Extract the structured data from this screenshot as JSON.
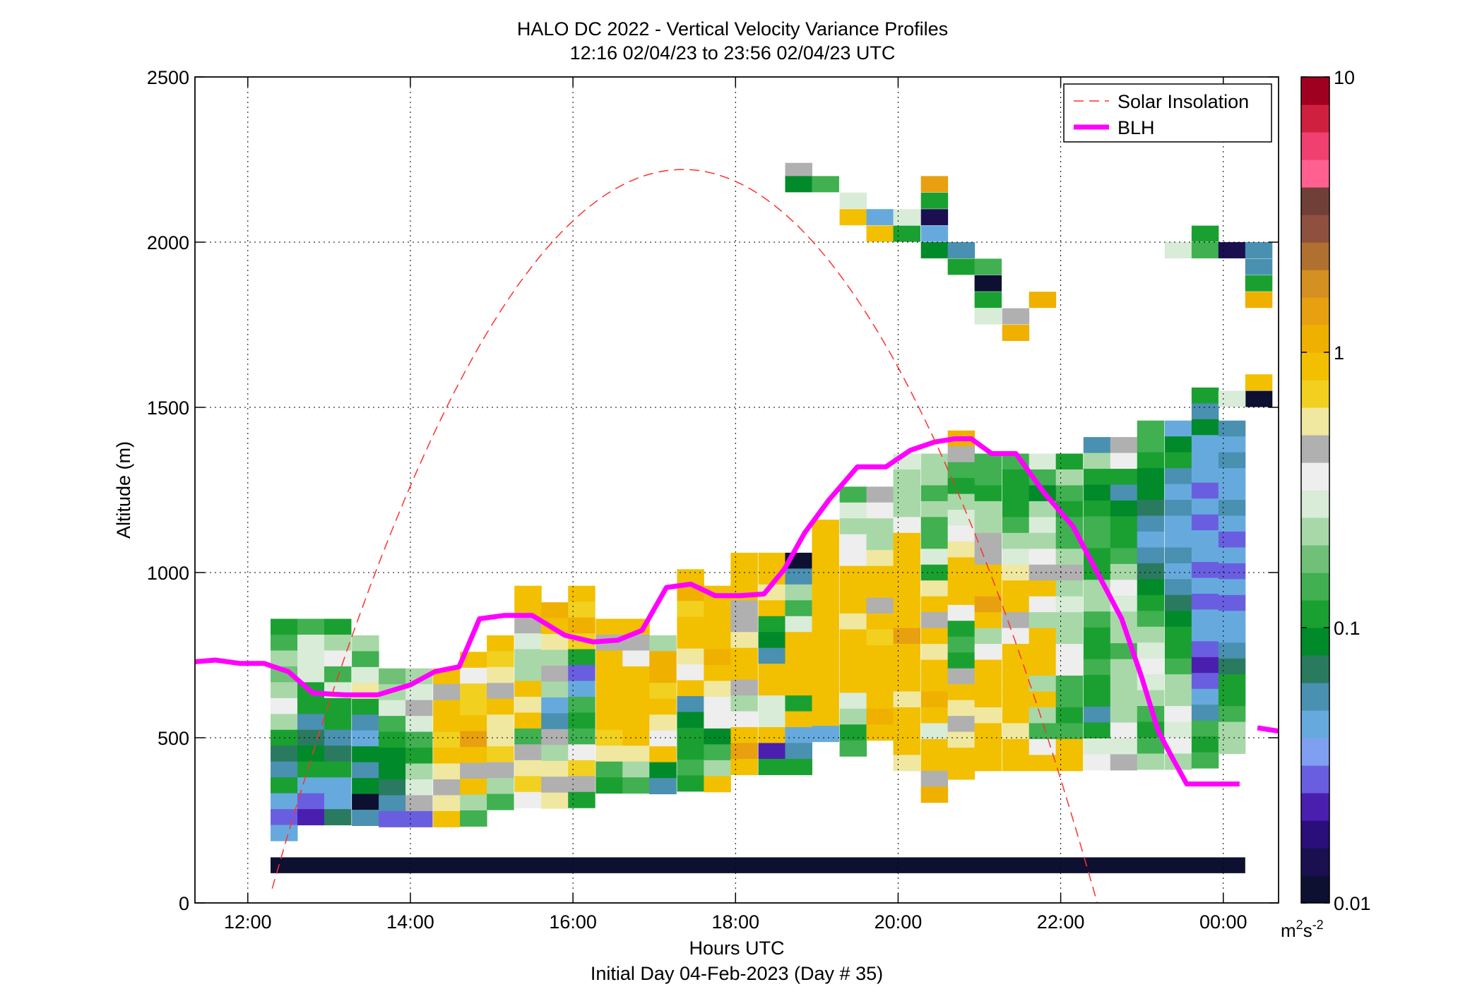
{
  "figure": {
    "title_line1": "HALO DC 2022 - Vertical Velocity Variance Profiles",
    "title_line2": "12:16 02/04/23 to 23:56 02/04/23  UTC",
    "xlabel": "Hours UTC",
    "xlabel2": "Initial Day 04-Feb-2023 (Day # 35)",
    "ylabel": "Altitude (m)",
    "colorbar_unit_base": "m",
    "colorbar_unit_exp1": "2",
    "colorbar_unit_mid": "s",
    "colorbar_unit_exp2": "-2"
  },
  "chart_data": {
    "type": "heatmap",
    "title": "HALO DC 2022 - Vertical Velocity Variance Profiles",
    "subtitle": "12:16 02/04/23 to 23:56 02/04/23  UTC",
    "xlabel": "Hours UTC",
    "ylabel": "Altitude (m)",
    "xlim": [
      11.35,
      24.68
    ],
    "ylim": [
      0,
      2500
    ],
    "grid": true,
    "x_ticks": [
      {
        "value": 12,
        "label": "12:00"
      },
      {
        "value": 14,
        "label": "14:00"
      },
      {
        "value": 16,
        "label": "16:00"
      },
      {
        "value": 18,
        "label": "18:00"
      },
      {
        "value": 20,
        "label": "20:00"
      },
      {
        "value": 22,
        "label": "22:00"
      },
      {
        "value": 24,
        "label": "00:00"
      }
    ],
    "y_ticks": [
      {
        "value": 0,
        "label": "0"
      },
      {
        "value": 500,
        "label": "500"
      },
      {
        "value": 1000,
        "label": "1000"
      },
      {
        "value": 1500,
        "label": "1500"
      },
      {
        "value": 2000,
        "label": "2000"
      },
      {
        "value": 2500,
        "label": "2500"
      }
    ],
    "colorbar": {
      "scale": "log",
      "range": [
        0.01,
        10
      ],
      "ticks": [
        {
          "value": 0.01,
          "label": "0.01"
        },
        {
          "value": 0.1,
          "label": "0.1"
        },
        {
          "value": 1,
          "label": "1"
        },
        {
          "value": 10,
          "label": "10"
        }
      ],
      "unit": "m2s-2",
      "colors": [
        "#0d1030",
        "#1a1050",
        "#2a0f7a",
        "#4a1fb0",
        "#6a5ee0",
        "#7fa0f0",
        "#66aadd",
        "#4a90b0",
        "#2a7a60",
        "#008a2a",
        "#1aa030",
        "#40b050",
        "#70c078",
        "#a8d8a8",
        "#d8ecd8",
        "#eeeeee",
        "#b0b0b0",
        "#f0e8a0",
        "#f2d020",
        "#f2c000",
        "#f0b000",
        "#e8a010",
        "#d49020",
        "#b07030",
        "#905040",
        "#704038",
        "#ff6090",
        "#f04070",
        "#d02040",
        "#a00020"
      ]
    },
    "legend": {
      "placement": "top-right",
      "entries": [
        {
          "label": "Solar Insolation",
          "color": "#ff3030",
          "style": "dashed"
        },
        {
          "label": "BLH",
          "color": "#ff00ff",
          "style": "solid"
        }
      ]
    },
    "series": [
      {
        "name": "BLH",
        "color": "#ff00ff",
        "x": [
          11.35,
          11.6,
          11.9,
          12.2,
          12.5,
          12.8,
          13.2,
          13.6,
          14.0,
          14.3,
          14.6,
          14.85,
          15.15,
          15.5,
          15.9,
          16.25,
          16.55,
          16.85,
          17.15,
          17.45,
          17.75,
          18.05,
          18.35,
          18.6,
          18.85,
          19.15,
          19.5,
          19.85,
          20.15,
          20.45,
          20.7,
          20.9,
          21.15,
          21.45,
          21.8,
          22.15,
          22.45,
          22.75,
          23.0,
          23.2,
          23.35,
          23.55,
          23.85,
          24.2
        ],
        "y": [
          730,
          735,
          725,
          725,
          700,
          635,
          630,
          630,
          660,
          700,
          715,
          860,
          870,
          870,
          810,
          790,
          795,
          825,
          955,
          965,
          930,
          930,
          935,
          1010,
          1120,
          1220,
          1320,
          1320,
          1370,
          1395,
          1405,
          1405,
          1360,
          1360,
          1240,
          1140,
          1000,
          860,
          680,
          520,
          450,
          360,
          360,
          360
        ]
      },
      {
        "name": "BLH",
        "segment": "right-edge",
        "color": "#ff00ff",
        "x": [
          24.42,
          24.68
        ],
        "y": [
          530,
          520
        ]
      },
      {
        "name": "Solar Insolation",
        "color": "#ff3030",
        "x_min": 12.3,
        "x_max": 22.45,
        "peak_x": 17.35,
        "peak_y": 2220
      }
    ],
    "bin_x": [
      12.28,
      12.61,
      12.94,
      13.28,
      13.61,
      13.94,
      14.28,
      14.61,
      14.94,
      15.28,
      15.61,
      15.94,
      16.28,
      16.61,
      16.94,
      17.28,
      17.61,
      17.94,
      18.28,
      18.61,
      18.94,
      19.28,
      19.61,
      19.94,
      20.28,
      20.61,
      20.94,
      21.28,
      21.61,
      21.94,
      22.28,
      22.61,
      22.94,
      23.28,
      23.61,
      23.94
    ],
    "bin_height_m": 48,
    "bottom_row": {
      "y0": 90,
      "y1": 138,
      "value": 0.01
    },
    "columns": [
      {
        "top": 860,
        "values": [
          0.12,
          0.15,
          0.25,
          0.18,
          0.25,
          0.35,
          0.2,
          0.12,
          0.07,
          0.06,
          0.12,
          0.04,
          0.03,
          0.04
        ]
      },
      {
        "top": 860,
        "values": [
          0.15,
          0.3,
          0.3,
          0.3,
          0.12,
          0.1,
          0.06,
          0.07,
          0.08,
          0.1,
          0.05,
          0.03,
          0.02
        ]
      },
      {
        "top": 860,
        "values": [
          0.12,
          0.2,
          0.35,
          0.15,
          0.3,
          0.1,
          0.1,
          0.06,
          0.07,
          0.1,
          0.05,
          0.04,
          0.07
        ]
      },
      {
        "top": 810,
        "values": [
          0.25,
          0.15,
          0.3,
          0.6,
          0.12,
          0.06,
          0.05,
          0.08,
          0.06,
          0.09,
          0.01,
          0.06
        ]
      },
      {
        "top": 710,
        "values": [
          0.18,
          0.25,
          0.3,
          0.15,
          0.1,
          0.08,
          0.09,
          0.07,
          0.06,
          0.03
        ]
      },
      {
        "top": 710,
        "values": [
          0.2,
          0.3,
          0.5,
          0.3,
          0.15,
          0.12,
          0.25,
          0.3,
          0.5,
          0.03
        ]
      },
      {
        "top": 710,
        "values": [
          0.8,
          0.5,
          0.8,
          0.8,
          0.7,
          0.9,
          0.6,
          0.5,
          0.6,
          0.8
        ]
      },
      {
        "top": 760,
        "values": [
          0.8,
          0.35,
          0.7,
          0.7,
          0.9,
          1.5,
          0.9,
          0.4,
          0.8,
          0.2,
          0.15
        ]
      },
      {
        "top": 810,
        "values": [
          0.8,
          0.7,
          0.6,
          0.4,
          0.8,
          0.6,
          0.6,
          0.7,
          0.4,
          0.25,
          0.15
        ]
      },
      {
        "top": 960,
        "values": [
          0.8,
          0.8,
          0.5,
          0.3,
          0.2,
          0.2,
          0.8,
          0.6,
          0.8,
          0.15,
          0.5,
          0.6,
          0.7,
          0.35
        ]
      },
      {
        "top": 910,
        "values": [
          1.2,
          0.8,
          0.6,
          0.2,
          0.4,
          0.2,
          0.04,
          0.06,
          0.4,
          0.25,
          0.6,
          0.4,
          0.6
        ]
      },
      {
        "top": 960,
        "values": [
          0.8,
          0.7,
          1.2,
          0.7,
          0.12,
          0.03,
          0.05,
          0.15,
          0.12,
          0.15,
          0.35,
          0.7,
          0.5,
          0.12
        ]
      },
      {
        "top": 860,
        "values": [
          0.8,
          0.5,
          0.8,
          0.8,
          0.8,
          0.8,
          0.8,
          0.7,
          0.6,
          0.15,
          0.12
        ]
      },
      {
        "top": 860,
        "values": [
          0.8,
          0.45,
          0.35,
          0.8,
          0.8,
          0.8,
          0.8,
          0.8,
          0.6,
          0.25,
          0.15
        ]
      },
      {
        "top": 810,
        "values": [
          0.2,
          1.2,
          1.2,
          0.7,
          0.8,
          0.6,
          0.35,
          0.8,
          0.08,
          0.06
        ]
      },
      {
        "top": 1010,
        "values": [
          0.8,
          1.2,
          0.7,
          0.8,
          0.8,
          0.6,
          0.35,
          0.8,
          0.06,
          0.08,
          0.1,
          0.12,
          0.15,
          0.12
        ]
      },
      {
        "top": 960,
        "values": [
          0.8,
          0.8,
          0.8,
          0.8,
          1.2,
          0.8,
          0.6,
          0.35,
          0.35,
          0.08,
          0.15,
          0.2,
          0.8
        ]
      },
      {
        "top": 1060,
        "values": [
          0.8,
          0.8,
          0.8,
          0.5,
          0.5,
          0.6,
          0.8,
          0.8,
          0.5,
          0.25,
          0.35,
          0.8,
          1.5,
          0.9
        ]
      },
      {
        "top": 1060,
        "values": [
          0.8,
          0.8,
          0.6,
          0.8,
          0.1,
          0.08,
          0.06,
          0.8,
          0.8,
          0.3,
          0.3,
          0.8,
          0.02,
          0.12
        ]
      },
      {
        "top": 1060,
        "values": [
          0.01,
          0.06,
          0.2,
          0.15,
          0.3,
          0.8,
          0.8,
          0.8,
          0.8,
          0.12,
          0.8,
          0.04,
          0.06,
          0.1
        ]
      },
      {
        "top": 1160,
        "values": [
          0.8,
          0.8,
          0.8,
          0.8,
          0.8,
          0.8,
          0.8,
          0.8,
          0.8,
          0.8,
          0.8,
          0.8,
          0.8,
          0.04
        ]
      },
      {
        "top": 1260,
        "values": [
          0.15,
          0.3,
          0.25,
          0.35,
          0.35,
          0.8,
          0.8,
          0.8,
          0.6,
          0.8,
          0.8,
          0.8,
          0.8,
          0.3,
          0.2,
          0.12,
          0.15
        ]
      },
      {
        "top": 1260,
        "values": [
          0.5,
          0.35,
          0.25,
          0.25,
          0.6,
          0.8,
          0.8,
          0.5,
          0.8,
          0.7,
          0.8,
          0.8,
          0.8,
          0.8,
          1.2,
          0.8
        ]
      },
      {
        "top": 1360,
        "values": [
          0.3,
          0.25,
          0.25,
          0.25,
          0.35,
          0.8,
          0.8,
          0.8,
          0.8,
          0.8,
          0.8,
          1.5,
          0.8,
          0.8,
          0.8,
          0.6,
          0.8,
          0.8,
          0.8,
          0.6
        ]
      },
      {
        "top": 1360,
        "values": [
          0.25,
          0.2,
          0.15,
          0.2,
          0.15,
          0.15,
          0.3,
          0.12,
          0.6,
          0.8,
          0.4,
          0.8,
          0.6,
          0.8,
          0.8,
          1.2,
          0.8,
          0.3,
          0.8,
          0.8,
          0.5,
          1.2
        ]
      },
      {
        "top": 1430,
        "values": [
          1.2,
          0.5,
          0.15,
          0.12,
          0.2,
          0.3,
          0.35,
          0.6,
          0.8,
          0.8,
          0.8,
          0.35,
          0.12,
          0.15,
          0.1,
          0.5,
          0.8,
          0.6,
          0.5,
          0.6,
          0.8,
          0.8
        ]
      },
      {
        "top": 1360,
        "values": [
          0.15,
          0.15,
          0.12,
          0.2,
          0.25,
          0.5,
          0.5,
          0.8,
          0.8,
          1.5,
          0.8,
          0.25,
          0.35,
          0.8,
          0.8,
          0.8,
          0.6,
          0.8,
          0.8,
          0.8
        ]
      },
      {
        "top": 1360,
        "values": [
          0.15,
          0.12,
          0.1,
          0.1,
          0.15,
          0.2,
          0.3,
          0.6,
          0.8,
          0.8,
          0.5,
          0.35,
          0.8,
          0.8,
          0.8,
          0.8,
          0.8,
          0.6,
          0.8,
          0.8
        ]
      },
      {
        "top": 1360,
        "values": [
          0.3,
          0.15,
          0.08,
          0.2,
          0.3,
          0.25,
          0.35,
          0.5,
          0.8,
          0.35,
          0.2,
          0.8,
          0.8,
          0.8,
          0.2,
          0.8,
          0.25,
          0.15,
          0.35,
          0.8
        ]
      },
      {
        "top": 1360,
        "values": [
          0.12,
          0.25,
          0.15,
          0.1,
          0.15,
          0.15,
          0.25,
          0.5,
          0.25,
          0.3,
          0.2,
          0.2,
          0.35,
          0.35,
          0.15,
          0.15,
          0.12,
          0.15,
          0.8,
          0.8
        ]
      },
      {
        "top": 1410,
        "values": [
          0.06,
          0.2,
          0.12,
          0.08,
          0.1,
          0.15,
          0.15,
          0.1,
          0.12,
          0.2,
          0.25,
          0.15,
          0.12,
          0.1,
          0.15,
          0.12,
          0.1,
          0.06,
          0.12,
          0.3,
          0.35
        ]
      },
      {
        "top": 1410,
        "values": [
          0.5,
          0.35,
          0.12,
          0.06,
          0.08,
          0.1,
          0.12,
          0.15,
          0.25,
          0.35,
          0.3,
          0.25,
          0.2,
          0.15,
          0.2,
          0.25,
          0.2,
          0.25,
          0.35,
          0.3,
          0.4
        ]
      },
      {
        "top": 1460,
        "values": [
          0.15,
          0.15,
          0.1,
          0.08,
          0.08,
          0.07,
          0.06,
          0.05,
          0.06,
          0.07,
          0.08,
          0.1,
          0.15,
          0.2,
          0.3,
          0.35,
          0.3,
          0.2,
          0.15,
          0.12,
          0.15,
          0.2
        ]
      },
      {
        "top": 1460,
        "values": [
          0.05,
          0.08,
          0.1,
          0.06,
          0.05,
          0.06,
          0.04,
          0.05,
          0.06,
          0.05,
          0.06,
          0.07,
          0.08,
          0.1,
          0.12,
          0.15,
          0.2,
          0.25,
          0.35,
          0.3,
          0.35,
          0.2
        ]
      },
      {
        "top": 1560,
        "values": [
          0.12,
          0.06,
          0.08,
          0.04,
          0.05,
          0.04,
          0.03,
          0.04,
          0.03,
          0.05,
          0.04,
          0.03,
          0.04,
          0.03,
          0.04,
          0.05,
          0.03,
          0.02,
          0.03,
          0.04,
          0.06,
          0.15,
          0.12,
          0.15
        ]
      },
      {
        "top": 1460,
        "values": [
          0.06,
          0.05,
          0.06,
          0.04,
          0.05,
          0.06,
          0.04,
          0.03,
          0.04,
          0.03,
          0.04,
          0.03,
          0.04,
          0.05,
          0.06,
          0.07,
          0.1,
          0.12,
          0.15,
          0.2,
          0.25
        ]
      }
    ],
    "sparse_cells": [
      {
        "col": 19,
        "y": 2240,
        "value": 0.4
      },
      {
        "col": 19,
        "y": 2200,
        "value": 0.08
      },
      {
        "col": 20,
        "y": 2200,
        "value": 0.15
      },
      {
        "col": 21,
        "y": 2150,
        "value": 0.3
      },
      {
        "col": 21,
        "y": 2100,
        "value": 0.8
      },
      {
        "col": 22,
        "y": 2100,
        "value": 0.05
      },
      {
        "col": 22,
        "y": 2050,
        "value": 0.8
      },
      {
        "col": 23,
        "y": 2100,
        "value": 0.3
      },
      {
        "col": 23,
        "y": 2050,
        "value": 0.1
      },
      {
        "col": 24,
        "y": 2200,
        "value": 1.5
      },
      {
        "col": 24,
        "y": 2150,
        "value": 0.1
      },
      {
        "col": 24,
        "y": 2100,
        "value": 0.015
      },
      {
        "col": 24,
        "y": 2050,
        "value": 0.04
      },
      {
        "col": 24,
        "y": 2000,
        "value": 0.08
      },
      {
        "col": 25,
        "y": 2000,
        "value": 0.06
      },
      {
        "col": 25,
        "y": 1950,
        "value": 0.1
      },
      {
        "col": 26,
        "y": 1950,
        "value": 0.15
      },
      {
        "col": 26,
        "y": 1900,
        "value": 0.01
      },
      {
        "col": 26,
        "y": 1850,
        "value": 0.12
      },
      {
        "col": 26,
        "y": 1800,
        "value": 0.3
      },
      {
        "col": 27,
        "y": 1800,
        "value": 0.5
      },
      {
        "col": 27,
        "y": 1750,
        "value": 1.2
      },
      {
        "col": 28,
        "y": 1850,
        "value": 1.2
      },
      {
        "col": 33,
        "y": 2000,
        "value": 0.3
      },
      {
        "col": 34,
        "y": 2000,
        "value": 0.15
      },
      {
        "col": 34,
        "y": 2050,
        "value": 0.12
      },
      {
        "col": 35,
        "y": 2000,
        "value": 0.015
      },
      {
        "col": 36,
        "y": 2000,
        "value": 0.06
      },
      {
        "col": 36,
        "y": 1950,
        "value": 0.06
      },
      {
        "col": 36,
        "y": 1900,
        "value": 0.1
      },
      {
        "col": 36,
        "y": 1850,
        "value": 1.2
      },
      {
        "col": 36,
        "y": 1600,
        "value": 0.9
      },
      {
        "col": 36,
        "y": 1550,
        "value": 0.01
      },
      {
        "col": 35,
        "y": 1550,
        "value": 0.3
      }
    ]
  }
}
